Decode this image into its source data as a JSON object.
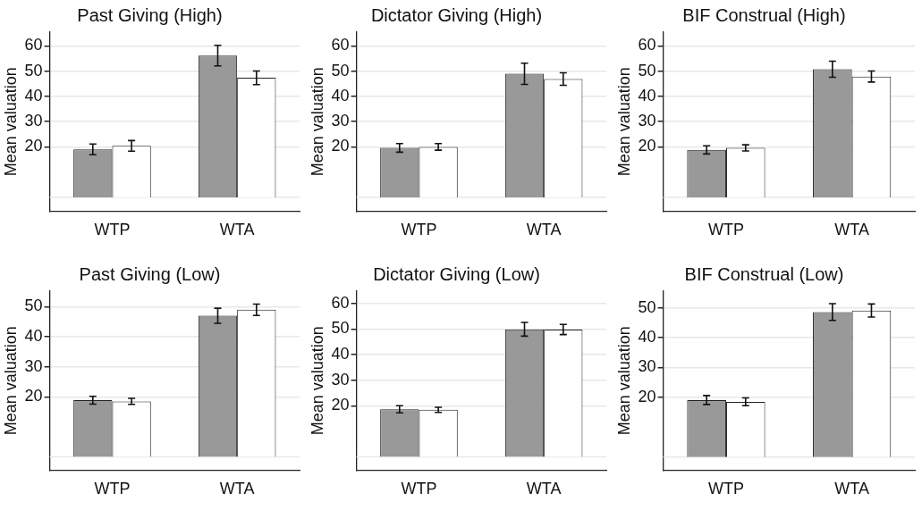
{
  "chart_data": [
    {
      "type": "bar",
      "title": "Past Giving (High)",
      "ylabel": "Mean valuation",
      "categories": [
        "WTP",
        "WTA"
      ],
      "ylim": [
        -5.5,
        65.5
      ],
      "yticks": [
        20,
        30,
        40,
        50,
        60
      ],
      "grid": "y",
      "ref_lines": [
        {
          "axis": "y",
          "value": 0,
          "color": "#e6e9ee"
        }
      ],
      "series": [
        {
          "color": "#999999",
          "values": [
            19.0,
            56.2
          ],
          "errors": [
            2.1,
            4.1
          ]
        },
        {
          "color": "#ffffff",
          "values": [
            20.4,
            47.4
          ],
          "errors": [
            2.1,
            2.7
          ]
        }
      ]
    },
    {
      "type": "bar",
      "title": "Dictator Giving (High)",
      "ylabel": "Mean valuation",
      "categories": [
        "WTP",
        "WTA"
      ],
      "ylim": [
        -5.5,
        65.5
      ],
      "yticks": [
        20,
        30,
        40,
        50,
        60
      ],
      "grid": "y",
      "ref_lines": [
        {
          "axis": "y",
          "value": 0,
          "color": "#e6e9ee"
        }
      ],
      "series": [
        {
          "color": "#999999",
          "values": [
            19.6,
            49.0
          ],
          "errors": [
            1.7,
            4.2
          ]
        },
        {
          "color": "#ffffff",
          "values": [
            20.0,
            46.9
          ],
          "errors": [
            1.3,
            2.5
          ]
        }
      ]
    },
    {
      "type": "bar",
      "title": "BIF Construal (High)",
      "ylabel": "Mean valuation",
      "categories": [
        "WTP",
        "WTA"
      ],
      "ylim": [
        -5.5,
        65.5
      ],
      "yticks": [
        20,
        30,
        40,
        50,
        60
      ],
      "grid": "y",
      "ref_lines": [
        {
          "axis": "y",
          "value": 0,
          "color": "#e6e9ee"
        }
      ],
      "series": [
        {
          "color": "#999999",
          "values": [
            18.8,
            50.8
          ],
          "errors": [
            1.6,
            3.2
          ]
        },
        {
          "color": "#ffffff",
          "values": [
            19.6,
            47.9
          ],
          "errors": [
            1.2,
            2.2
          ]
        }
      ]
    },
    {
      "type": "bar",
      "title": "Past Giving (Low)",
      "ylabel": "Mean valuation",
      "categories": [
        "WTP",
        "WTA"
      ],
      "ylim": [
        -4.4,
        55.2
      ],
      "yticks": [
        20,
        30,
        40,
        50
      ],
      "grid": "y",
      "ref_lines": [
        {
          "axis": "y",
          "value": 0,
          "color": "#e6e9ee"
        }
      ],
      "series": [
        {
          "color": "#999999",
          "values": [
            18.9,
            47.0
          ],
          "errors": [
            1.3,
            2.5
          ]
        },
        {
          "color": "#ffffff",
          "values": [
            18.5,
            49.0
          ],
          "errors": [
            1.0,
            1.9
          ]
        }
      ]
    },
    {
      "type": "bar",
      "title": "Dictator Giving (Low)",
      "ylabel": "Mean valuation",
      "categories": [
        "WTP",
        "WTA"
      ],
      "ylim": [
        -5.2,
        64.8
      ],
      "yticks": [
        20,
        30,
        40,
        50,
        60
      ],
      "grid": "y",
      "ref_lines": [
        {
          "axis": "y",
          "value": 0,
          "color": "#e6e9ee"
        }
      ],
      "series": [
        {
          "color": "#999999",
          "values": [
            18.6,
            49.9
          ],
          "errors": [
            1.4,
            2.7
          ]
        },
        {
          "color": "#ffffff",
          "values": [
            18.4,
            49.8
          ],
          "errors": [
            1.0,
            2.0
          ]
        }
      ]
    },
    {
      "type": "bar",
      "title": "BIF Construal (Low)",
      "ylabel": "Mean valuation",
      "categories": [
        "WTP",
        "WTA"
      ],
      "ylim": [
        -4.4,
        55.6
      ],
      "yticks": [
        20,
        30,
        40,
        50
      ],
      "grid": "y",
      "ref_lines": [
        {
          "axis": "y",
          "value": 0,
          "color": "#e6e9ee"
        }
      ],
      "series": [
        {
          "color": "#999999",
          "values": [
            19.1,
            48.6
          ],
          "errors": [
            1.5,
            2.8
          ]
        },
        {
          "color": "#ffffff",
          "values": [
            18.5,
            49.1
          ],
          "errors": [
            1.3,
            2.2
          ]
        }
      ]
    }
  ]
}
